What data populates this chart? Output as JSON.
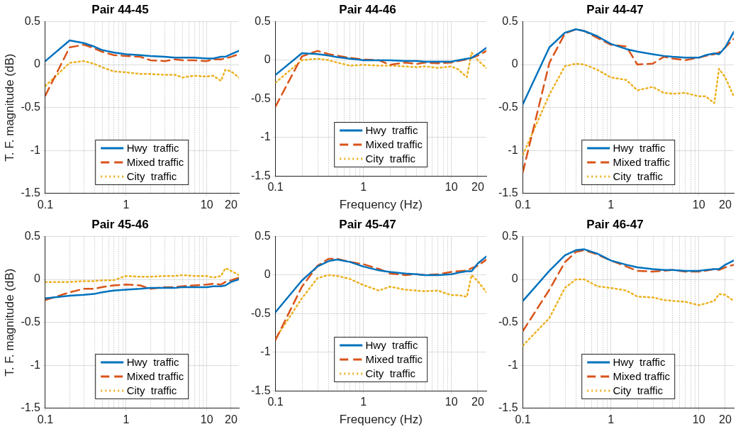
{
  "chart_data": [
    {
      "type": "line",
      "title": "Pair 44-45",
      "ylabel": "T. F. magnitude (dB)",
      "log": "x",
      "grid": true,
      "legend": "bottom",
      "marker": "none",
      "xlim": [
        0.1,
        25
      ],
      "ylim": [
        -1.5,
        0.5
      ],
      "xticks": [
        0.1,
        {
          "value": 0.2,
          "label": null
        },
        {
          "value": 0.3,
          "label": null
        },
        {
          "value": 0.4,
          "label": null
        },
        {
          "value": 0.5,
          "label": null
        },
        {
          "value": 0.6,
          "label": null
        },
        {
          "value": 0.7,
          "label": null
        },
        {
          "value": 0.8,
          "label": null
        },
        {
          "value": 0.9,
          "label": null
        },
        1,
        {
          "value": 2,
          "label": null
        },
        {
          "value": 3,
          "label": null
        },
        {
          "value": 4,
          "label": null
        },
        {
          "value": 5,
          "label": null
        },
        {
          "value": 6,
          "label": null
        },
        {
          "value": 7,
          "label": null
        },
        {
          "value": 8,
          "label": null
        },
        {
          "value": 9,
          "label": null
        },
        10,
        20
      ],
      "yticks": [
        -1.5,
        -1,
        -0.5,
        0,
        0.5
      ],
      "x": [
        0.1,
        0.2,
        0.3,
        0.4,
        0.5,
        0.7,
        1,
        1.5,
        2,
        3,
        4,
        5,
        7,
        10,
        12,
        15,
        17,
        20,
        25
      ],
      "series": [
        {
          "name": "Hwy  traffic",
          "color": "#0072bd",
          "line_style": "solid",
          "values": [
            0.04,
            0.28,
            0.25,
            0.21,
            0.17,
            0.14,
            0.12,
            0.11,
            0.1,
            0.09,
            0.08,
            0.08,
            0.08,
            0.07,
            0.07,
            0.09,
            0.09,
            0.12,
            0.16
          ]
        },
        {
          "name": "Mixed traffic",
          "color": "#d95319",
          "line_style": "dashed",
          "values": [
            -0.36,
            0.2,
            0.23,
            0.19,
            0.15,
            0.11,
            0.1,
            0.09,
            0.05,
            0.04,
            0.06,
            0.05,
            0.05,
            0.04,
            0.06,
            0.06,
            0.07,
            0.09,
            0.12
          ]
        },
        {
          "name": "City  traffic",
          "color": "#edb120",
          "line_style": "dotted",
          "values": [
            -0.25,
            0.02,
            0.04,
            0.01,
            -0.03,
            -0.08,
            -0.09,
            -0.11,
            -0.11,
            -0.12,
            -0.12,
            -0.15,
            -0.13,
            -0.14,
            -0.13,
            -0.19,
            -0.06,
            -0.08,
            -0.15
          ]
        }
      ]
    },
    {
      "type": "line",
      "title": "Pair 44-46",
      "xlabel": "Frequency (Hz)",
      "log": "x",
      "grid": true,
      "legend": "bottom",
      "marker": "none",
      "xlim": [
        0.1,
        25
      ],
      "ylim": [
        -1.5,
        0.5
      ],
      "xticks": [
        0.1,
        {
          "value": 0.2,
          "label": null
        },
        {
          "value": 0.3,
          "label": null
        },
        {
          "value": 0.4,
          "label": null
        },
        {
          "value": 0.5,
          "label": null
        },
        {
          "value": 0.6,
          "label": null
        },
        {
          "value": 0.7,
          "label": null
        },
        {
          "value": 0.8,
          "label": null
        },
        {
          "value": 0.9,
          "label": null
        },
        1,
        {
          "value": 2,
          "label": null
        },
        {
          "value": 3,
          "label": null
        },
        {
          "value": 4,
          "label": null
        },
        {
          "value": 5,
          "label": null
        },
        {
          "value": 6,
          "label": null
        },
        {
          "value": 7,
          "label": null
        },
        {
          "value": 8,
          "label": null
        },
        {
          "value": 9,
          "label": null
        },
        10,
        20
      ],
      "yticks": [
        -1.5,
        -1,
        -0.5,
        0,
        0.5
      ],
      "x": [
        0.1,
        0.2,
        0.3,
        0.4,
        0.5,
        0.7,
        1,
        1.5,
        2,
        3,
        4,
        5,
        7,
        10,
        12,
        15,
        17,
        20,
        25
      ],
      "series": [
        {
          "name": "Hwy  traffic",
          "color": "#0072bd",
          "line_style": "solid",
          "values": [
            -0.19,
            0.09,
            0.08,
            0.06,
            0.04,
            0.02,
            0,
            0,
            0,
            -0.01,
            -0.01,
            -0.02,
            -0.02,
            -0.02,
            0,
            0.02,
            0.03,
            0.08,
            0.16
          ]
        },
        {
          "name": "Mixed traffic",
          "color": "#d95319",
          "line_style": "dashed",
          "values": [
            -0.6,
            0.05,
            0.12,
            0.08,
            0.06,
            0.03,
            0.01,
            0,
            -0.06,
            -0.03,
            -0.05,
            -0.03,
            -0.04,
            -0.03,
            -0.01,
            0.01,
            0.03,
            0.06,
            0.12
          ]
        },
        {
          "name": "City  traffic",
          "color": "#edb120",
          "line_style": "dotted",
          "values": [
            -0.29,
            0,
            0.02,
            0,
            -0.03,
            -0.07,
            -0.06,
            -0.07,
            -0.07,
            -0.08,
            -0.09,
            -0.08,
            -0.1,
            -0.08,
            -0.12,
            -0.22,
            0.1,
            0,
            -0.1
          ]
        }
      ]
    },
    {
      "type": "line",
      "title": "Pair 44-47",
      "log": "x",
      "grid": true,
      "legend": "bottom",
      "marker": "none",
      "xlim": [
        0.1,
        25
      ],
      "ylim": [
        -1.5,
        0.5
      ],
      "xticks": [
        0.1,
        {
          "value": 0.2,
          "label": null
        },
        {
          "value": 0.3,
          "label": null
        },
        {
          "value": 0.4,
          "label": null
        },
        {
          "value": 0.5,
          "label": null
        },
        {
          "value": 0.6,
          "label": null
        },
        {
          "value": 0.7,
          "label": null
        },
        {
          "value": 0.8,
          "label": null
        },
        {
          "value": 0.9,
          "label": null
        },
        1,
        {
          "value": 2,
          "label": null
        },
        {
          "value": 3,
          "label": null
        },
        {
          "value": 4,
          "label": null
        },
        {
          "value": 5,
          "label": null
        },
        {
          "value": 6,
          "label": null
        },
        {
          "value": 7,
          "label": null
        },
        {
          "value": 8,
          "label": null
        },
        {
          "value": 9,
          "label": null
        },
        10,
        20
      ],
      "yticks": [
        -1.5,
        -1,
        -0.5,
        0,
        0.5
      ],
      "x": [
        0.1,
        0.2,
        0.3,
        0.4,
        0.5,
        0.7,
        1,
        1.5,
        2,
        3,
        4,
        5,
        7,
        10,
        12,
        15,
        17,
        20,
        25
      ],
      "series": [
        {
          "name": "Hwy  traffic",
          "color": "#0072bd",
          "line_style": "solid",
          "values": [
            -0.46,
            0.2,
            0.37,
            0.41,
            0.39,
            0.33,
            0.24,
            0.18,
            0.15,
            0.12,
            0.1,
            0.09,
            0.08,
            0.08,
            0.11,
            0.13,
            0.12,
            0.2,
            0.38
          ]
        },
        {
          "name": "Mixed traffic",
          "color": "#d95319",
          "line_style": "dashed",
          "values": [
            -1.25,
            0.02,
            0.36,
            0.41,
            0.39,
            0.31,
            0.23,
            0.21,
            0,
            0.01,
            0.09,
            0.07,
            0.05,
            0.08,
            0.1,
            0.12,
            0.14,
            0.2,
            0.3
          ]
        },
        {
          "name": "City  traffic",
          "color": "#edb120",
          "line_style": "dotted",
          "values": [
            -1.05,
            -0.35,
            -0.02,
            0.01,
            0,
            -0.06,
            -0.15,
            -0.18,
            -0.3,
            -0.26,
            -0.33,
            -0.34,
            -0.33,
            -0.37,
            -0.37,
            -0.45,
            -0.05,
            -0.15,
            -0.37
          ]
        }
      ]
    },
    {
      "type": "line",
      "title": "Pair 45-46",
      "ylabel": "T. F. magnitude (dB)",
      "log": "x",
      "grid": true,
      "legend": "bottom",
      "marker": "none",
      "xlim": [
        0.1,
        25
      ],
      "ylim": [
        -1.5,
        0.5
      ],
      "xticks": [
        0.1,
        {
          "value": 0.2,
          "label": null
        },
        {
          "value": 0.3,
          "label": null
        },
        {
          "value": 0.4,
          "label": null
        },
        {
          "value": 0.5,
          "label": null
        },
        {
          "value": 0.6,
          "label": null
        },
        {
          "value": 0.7,
          "label": null
        },
        {
          "value": 0.8,
          "label": null
        },
        {
          "value": 0.9,
          "label": null
        },
        1,
        {
          "value": 2,
          "label": null
        },
        {
          "value": 3,
          "label": null
        },
        {
          "value": 4,
          "label": null
        },
        {
          "value": 5,
          "label": null
        },
        {
          "value": 6,
          "label": null
        },
        {
          "value": 7,
          "label": null
        },
        {
          "value": 8,
          "label": null
        },
        {
          "value": 9,
          "label": null
        },
        10,
        20
      ],
      "yticks": [
        -1.5,
        -1,
        -0.5,
        0,
        0.5
      ],
      "x": [
        0.1,
        0.2,
        0.3,
        0.4,
        0.5,
        0.7,
        1,
        1.5,
        2,
        3,
        4,
        5,
        7,
        10,
        12,
        15,
        17,
        20,
        25
      ],
      "series": [
        {
          "name": "Hwy  traffic",
          "color": "#0072bd",
          "line_style": "solid",
          "values": [
            -0.22,
            -0.19,
            -0.18,
            -0.17,
            -0.15,
            -0.13,
            -0.12,
            -0.11,
            -0.1,
            -0.1,
            -0.1,
            -0.09,
            -0.09,
            -0.09,
            -0.08,
            -0.08,
            -0.07,
            -0.03,
            0
          ]
        },
        {
          "name": "Mixed traffic",
          "color": "#d95319",
          "line_style": "dashed",
          "values": [
            -0.24,
            -0.15,
            -0.11,
            -0.11,
            -0.09,
            -0.07,
            -0.06,
            -0.07,
            -0.11,
            -0.09,
            -0.09,
            -0.08,
            -0.07,
            -0.06,
            -0.05,
            -0.06,
            -0.03,
            -0.01,
            0.02
          ]
        },
        {
          "name": "City  traffic",
          "color": "#edb120",
          "line_style": "dotted",
          "values": [
            -0.03,
            -0.03,
            -0.02,
            -0.02,
            -0.01,
            -0.01,
            0.04,
            0.03,
            0.03,
            0.04,
            0.04,
            0.05,
            0.04,
            0.04,
            0.02,
            0.04,
            0.13,
            0.1,
            0.05
          ]
        }
      ]
    },
    {
      "type": "line",
      "title": "Pair 45-47",
      "xlabel": "Frequency (Hz)",
      "log": "x",
      "grid": true,
      "legend": "bottom",
      "marker": "none",
      "xlim": [
        0.1,
        25
      ],
      "ylim": [
        -1.5,
        0.5
      ],
      "xticks": [
        0.1,
        {
          "value": 0.2,
          "label": null
        },
        {
          "value": 0.3,
          "label": null
        },
        {
          "value": 0.4,
          "label": null
        },
        {
          "value": 0.5,
          "label": null
        },
        {
          "value": 0.6,
          "label": null
        },
        {
          "value": 0.7,
          "label": null
        },
        {
          "value": 0.8,
          "label": null
        },
        {
          "value": 0.9,
          "label": null
        },
        1,
        {
          "value": 2,
          "label": null
        },
        {
          "value": 3,
          "label": null
        },
        {
          "value": 4,
          "label": null
        },
        {
          "value": 5,
          "label": null
        },
        {
          "value": 6,
          "label": null
        },
        {
          "value": 7,
          "label": null
        },
        {
          "value": 8,
          "label": null
        },
        {
          "value": 9,
          "label": null
        },
        10,
        20
      ],
      "yticks": [
        -1.5,
        -1,
        -0.5,
        0,
        0.5
      ],
      "x": [
        0.1,
        0.2,
        0.3,
        0.4,
        0.5,
        0.7,
        1,
        1.5,
        2,
        3,
        4,
        5,
        7,
        10,
        12,
        15,
        17,
        20,
        25
      ],
      "series": [
        {
          "name": "Hwy  traffic",
          "color": "#0072bd",
          "line_style": "solid",
          "values": [
            -0.48,
            -0.07,
            0.11,
            0.18,
            0.2,
            0.17,
            0.11,
            0.06,
            0.04,
            0.02,
            0.01,
            0,
            0,
            0.01,
            0.03,
            0.05,
            0.05,
            0.15,
            0.24
          ]
        },
        {
          "name": "Mixed traffic",
          "color": "#d95319",
          "line_style": "dashed",
          "values": [
            -0.84,
            -0.15,
            0.12,
            0.21,
            0.21,
            0.17,
            0.14,
            0.08,
            0.02,
            0,
            0.01,
            0,
            0.01,
            0.04,
            0.05,
            0.06,
            0.09,
            0.12,
            0.2
          ]
        },
        {
          "name": "City  traffic",
          "color": "#edb120",
          "line_style": "dotted",
          "values": [
            -0.82,
            -0.3,
            -0.04,
            0,
            -0.01,
            -0.05,
            -0.13,
            -0.2,
            -0.15,
            -0.19,
            -0.2,
            -0.21,
            -0.2,
            -0.26,
            -0.26,
            -0.28,
            0,
            -0.08,
            -0.22
          ]
        }
      ]
    },
    {
      "type": "line",
      "title": "Pair 46-47",
      "log": "x",
      "grid": true,
      "legend": "bottom",
      "marker": "none",
      "xlim": [
        0.1,
        25
      ],
      "ylim": [
        -1.5,
        0.5
      ],
      "xticks": [
        0.1,
        {
          "value": 0.2,
          "label": null
        },
        {
          "value": 0.3,
          "label": null
        },
        {
          "value": 0.4,
          "label": null
        },
        {
          "value": 0.5,
          "label": null
        },
        {
          "value": 0.6,
          "label": null
        },
        {
          "value": 0.7,
          "label": null
        },
        {
          "value": 0.8,
          "label": null
        },
        {
          "value": 0.9,
          "label": null
        },
        1,
        {
          "value": 2,
          "label": null
        },
        {
          "value": 3,
          "label": null
        },
        {
          "value": 4,
          "label": null
        },
        {
          "value": 5,
          "label": null
        },
        {
          "value": 6,
          "label": null
        },
        {
          "value": 7,
          "label": null
        },
        {
          "value": 8,
          "label": null
        },
        {
          "value": 9,
          "label": null
        },
        10,
        20
      ],
      "yticks": [
        -1.5,
        -1,
        -0.5,
        0,
        0.5
      ],
      "x": [
        0.1,
        0.2,
        0.3,
        0.4,
        0.5,
        0.7,
        1,
        1.5,
        2,
        3,
        4,
        5,
        7,
        10,
        12,
        15,
        17,
        20,
        25
      ],
      "series": [
        {
          "name": "Hwy  traffic",
          "color": "#0072bd",
          "line_style": "solid",
          "values": [
            -0.25,
            0.1,
            0.28,
            0.34,
            0.35,
            0.3,
            0.22,
            0.17,
            0.14,
            0.12,
            0.11,
            0.11,
            0.1,
            0.1,
            0.11,
            0.12,
            0.12,
            0.17,
            0.22
          ]
        },
        {
          "name": "Mixed traffic",
          "color": "#d95319",
          "line_style": "dashed",
          "values": [
            -0.6,
            -0.12,
            0.2,
            0.32,
            0.34,
            0.29,
            0.22,
            0.15,
            0.1,
            0.09,
            0.1,
            0.11,
            0.09,
            0.09,
            0.1,
            0.12,
            0.11,
            0.14,
            0.17
          ]
        },
        {
          "name": "City  traffic",
          "color": "#edb120",
          "line_style": "dotted",
          "values": [
            -0.77,
            -0.45,
            -0.1,
            0,
            0,
            -0.08,
            -0.1,
            -0.13,
            -0.2,
            -0.21,
            -0.24,
            -0.25,
            -0.26,
            -0.3,
            -0.28,
            -0.25,
            -0.17,
            -0.18,
            -0.25
          ]
        }
      ]
    }
  ]
}
